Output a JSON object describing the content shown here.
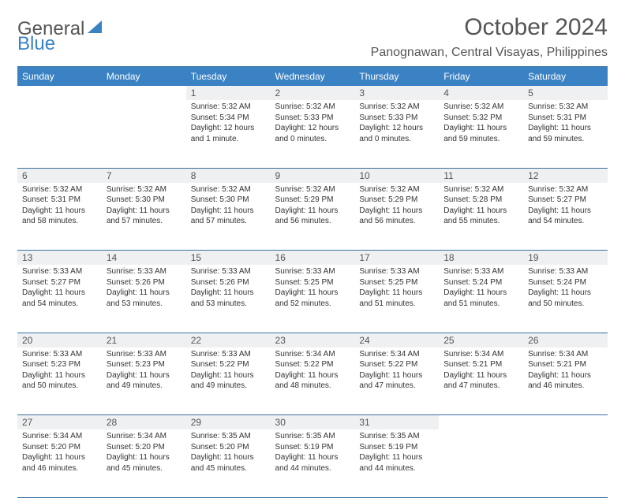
{
  "logo": {
    "word1": "General",
    "word2": "Blue"
  },
  "title": "October 2024",
  "location": "Panognawan, Central Visayas, Philippines",
  "colors": {
    "header_bg": "#3b82c4",
    "header_text": "#ffffff",
    "daynum_bg": "#eef0f2",
    "rule": "#3b6fa0",
    "text": "#333333",
    "muted": "#555555",
    "logo_blue": "#3b82c4",
    "background": "#ffffff"
  },
  "day_headers": [
    "Sunday",
    "Monday",
    "Tuesday",
    "Wednesday",
    "Thursday",
    "Friday",
    "Saturday"
  ],
  "weeks": [
    [
      null,
      null,
      {
        "n": "1",
        "sr": "Sunrise: 5:32 AM",
        "ss": "Sunset: 5:34 PM",
        "dl": "Daylight: 12 hours and 1 minute."
      },
      {
        "n": "2",
        "sr": "Sunrise: 5:32 AM",
        "ss": "Sunset: 5:33 PM",
        "dl": "Daylight: 12 hours and 0 minutes."
      },
      {
        "n": "3",
        "sr": "Sunrise: 5:32 AM",
        "ss": "Sunset: 5:33 PM",
        "dl": "Daylight: 12 hours and 0 minutes."
      },
      {
        "n": "4",
        "sr": "Sunrise: 5:32 AM",
        "ss": "Sunset: 5:32 PM",
        "dl": "Daylight: 11 hours and 59 minutes."
      },
      {
        "n": "5",
        "sr": "Sunrise: 5:32 AM",
        "ss": "Sunset: 5:31 PM",
        "dl": "Daylight: 11 hours and 59 minutes."
      }
    ],
    [
      {
        "n": "6",
        "sr": "Sunrise: 5:32 AM",
        "ss": "Sunset: 5:31 PM",
        "dl": "Daylight: 11 hours and 58 minutes."
      },
      {
        "n": "7",
        "sr": "Sunrise: 5:32 AM",
        "ss": "Sunset: 5:30 PM",
        "dl": "Daylight: 11 hours and 57 minutes."
      },
      {
        "n": "8",
        "sr": "Sunrise: 5:32 AM",
        "ss": "Sunset: 5:30 PM",
        "dl": "Daylight: 11 hours and 57 minutes."
      },
      {
        "n": "9",
        "sr": "Sunrise: 5:32 AM",
        "ss": "Sunset: 5:29 PM",
        "dl": "Daylight: 11 hours and 56 minutes."
      },
      {
        "n": "10",
        "sr": "Sunrise: 5:32 AM",
        "ss": "Sunset: 5:29 PM",
        "dl": "Daylight: 11 hours and 56 minutes."
      },
      {
        "n": "11",
        "sr": "Sunrise: 5:32 AM",
        "ss": "Sunset: 5:28 PM",
        "dl": "Daylight: 11 hours and 55 minutes."
      },
      {
        "n": "12",
        "sr": "Sunrise: 5:32 AM",
        "ss": "Sunset: 5:27 PM",
        "dl": "Daylight: 11 hours and 54 minutes."
      }
    ],
    [
      {
        "n": "13",
        "sr": "Sunrise: 5:33 AM",
        "ss": "Sunset: 5:27 PM",
        "dl": "Daylight: 11 hours and 54 minutes."
      },
      {
        "n": "14",
        "sr": "Sunrise: 5:33 AM",
        "ss": "Sunset: 5:26 PM",
        "dl": "Daylight: 11 hours and 53 minutes."
      },
      {
        "n": "15",
        "sr": "Sunrise: 5:33 AM",
        "ss": "Sunset: 5:26 PM",
        "dl": "Daylight: 11 hours and 53 minutes."
      },
      {
        "n": "16",
        "sr": "Sunrise: 5:33 AM",
        "ss": "Sunset: 5:25 PM",
        "dl": "Daylight: 11 hours and 52 minutes."
      },
      {
        "n": "17",
        "sr": "Sunrise: 5:33 AM",
        "ss": "Sunset: 5:25 PM",
        "dl": "Daylight: 11 hours and 51 minutes."
      },
      {
        "n": "18",
        "sr": "Sunrise: 5:33 AM",
        "ss": "Sunset: 5:24 PM",
        "dl": "Daylight: 11 hours and 51 minutes."
      },
      {
        "n": "19",
        "sr": "Sunrise: 5:33 AM",
        "ss": "Sunset: 5:24 PM",
        "dl": "Daylight: 11 hours and 50 minutes."
      }
    ],
    [
      {
        "n": "20",
        "sr": "Sunrise: 5:33 AM",
        "ss": "Sunset: 5:23 PM",
        "dl": "Daylight: 11 hours and 50 minutes."
      },
      {
        "n": "21",
        "sr": "Sunrise: 5:33 AM",
        "ss": "Sunset: 5:23 PM",
        "dl": "Daylight: 11 hours and 49 minutes."
      },
      {
        "n": "22",
        "sr": "Sunrise: 5:33 AM",
        "ss": "Sunset: 5:22 PM",
        "dl": "Daylight: 11 hours and 49 minutes."
      },
      {
        "n": "23",
        "sr": "Sunrise: 5:34 AM",
        "ss": "Sunset: 5:22 PM",
        "dl": "Daylight: 11 hours and 48 minutes."
      },
      {
        "n": "24",
        "sr": "Sunrise: 5:34 AM",
        "ss": "Sunset: 5:22 PM",
        "dl": "Daylight: 11 hours and 47 minutes."
      },
      {
        "n": "25",
        "sr": "Sunrise: 5:34 AM",
        "ss": "Sunset: 5:21 PM",
        "dl": "Daylight: 11 hours and 47 minutes."
      },
      {
        "n": "26",
        "sr": "Sunrise: 5:34 AM",
        "ss": "Sunset: 5:21 PM",
        "dl": "Daylight: 11 hours and 46 minutes."
      }
    ],
    [
      {
        "n": "27",
        "sr": "Sunrise: 5:34 AM",
        "ss": "Sunset: 5:20 PM",
        "dl": "Daylight: 11 hours and 46 minutes."
      },
      {
        "n": "28",
        "sr": "Sunrise: 5:34 AM",
        "ss": "Sunset: 5:20 PM",
        "dl": "Daylight: 11 hours and 45 minutes."
      },
      {
        "n": "29",
        "sr": "Sunrise: 5:35 AM",
        "ss": "Sunset: 5:20 PM",
        "dl": "Daylight: 11 hours and 45 minutes."
      },
      {
        "n": "30",
        "sr": "Sunrise: 5:35 AM",
        "ss": "Sunset: 5:19 PM",
        "dl": "Daylight: 11 hours and 44 minutes."
      },
      {
        "n": "31",
        "sr": "Sunrise: 5:35 AM",
        "ss": "Sunset: 5:19 PM",
        "dl": "Daylight: 11 hours and 44 minutes."
      },
      null,
      null
    ]
  ]
}
